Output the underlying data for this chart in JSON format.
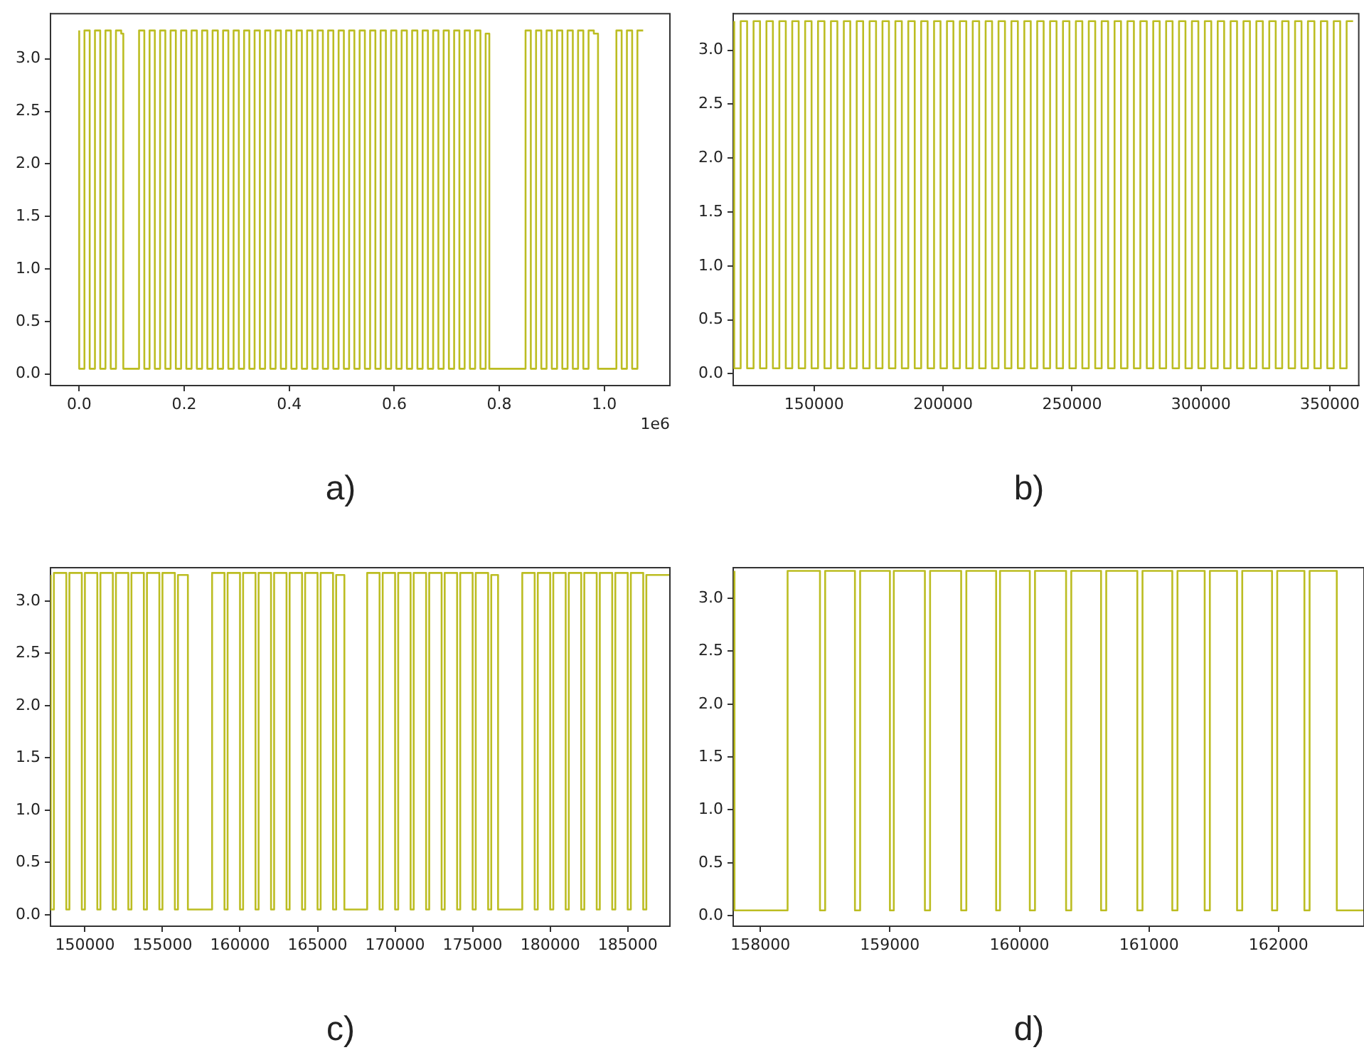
{
  "chart_data": [
    {
      "type": "step",
      "title": "a)",
      "color": "#bcbd22",
      "grid": false,
      "legend": false,
      "annotations": [
        "1e6"
      ],
      "xlim": [
        -0.0547,
        1.1249
      ],
      "xticks": [
        {
          "value": 0,
          "label": "0.0"
        },
        0.2,
        0.4,
        0.6,
        0.8,
        {
          "value": 1,
          "label": "1.0"
        }
      ],
      "ylim": [
        -0.11,
        3.43
      ],
      "yticks": [
        {
          "value": 0,
          "label": "0.0"
        },
        0.5,
        {
          "value": 1,
          "label": "1.0"
        },
        1.5,
        {
          "value": 2,
          "label": "2.0"
        },
        2.5,
        {
          "value": 3,
          "label": "3.0"
        }
      ],
      "x": [
        0,
        0.01,
        0.02,
        0.03,
        0.04,
        0.05,
        0.06,
        0.07,
        0.08,
        0.084,
        0.114,
        0.124,
        0.134,
        0.144,
        0.154,
        0.164,
        0.174,
        0.184,
        0.194,
        0.204,
        0.214,
        0.224,
        0.234,
        0.244,
        0.254,
        0.264,
        0.274,
        0.284,
        0.294,
        0.304,
        0.314,
        0.324,
        0.334,
        0.344,
        0.354,
        0.364,
        0.374,
        0.384,
        0.394,
        0.404,
        0.414,
        0.424,
        0.434,
        0.444,
        0.454,
        0.464,
        0.474,
        0.484,
        0.494,
        0.504,
        0.514,
        0.524,
        0.534,
        0.544,
        0.554,
        0.564,
        0.574,
        0.584,
        0.594,
        0.604,
        0.614,
        0.624,
        0.634,
        0.644,
        0.654,
        0.664,
        0.674,
        0.684,
        0.694,
        0.704,
        0.714,
        0.724,
        0.734,
        0.744,
        0.754,
        0.764,
        0.774,
        0.781,
        0.85,
        0.86,
        0.87,
        0.88,
        0.89,
        0.9,
        0.91,
        0.92,
        0.93,
        0.94,
        0.95,
        0.96,
        0.97,
        0.98,
        0.988,
        1.023,
        1.033,
        1.043,
        1.053,
        1.063,
        1.073,
        1.074
      ],
      "values": [
        3.27,
        0.05,
        3.27,
        0.05,
        3.27,
        0.05,
        3.27,
        0.05,
        3.27,
        3.24,
        0.05,
        3.27,
        0.05,
        3.27,
        0.05,
        3.27,
        0.05,
        3.27,
        0.05,
        3.27,
        0.05,
        3.27,
        0.05,
        3.27,
        0.05,
        3.27,
        0.05,
        3.27,
        0.05,
        3.27,
        0.05,
        3.27,
        0.05,
        3.27,
        0.05,
        3.27,
        0.05,
        3.27,
        0.05,
        3.27,
        0.05,
        3.27,
        0.05,
        3.27,
        0.05,
        3.27,
        0.05,
        3.27,
        0.05,
        3.27,
        0.05,
        3.27,
        0.05,
        3.27,
        0.05,
        3.27,
        0.05,
        3.27,
        0.05,
        3.27,
        0.05,
        3.27,
        0.05,
        3.27,
        0.05,
        3.27,
        0.05,
        3.27,
        0.05,
        3.27,
        0.05,
        3.27,
        0.05,
        3.27,
        0.05,
        3.27,
        0.05,
        3.24,
        0.05,
        3.27,
        0.05,
        3.27,
        0.05,
        3.27,
        0.05,
        3.27,
        0.05,
        3.27,
        0.05,
        3.27,
        0.05,
        3.27,
        3.24,
        0.05,
        3.27,
        0.05,
        3.27,
        0.05,
        3.27,
        3.27
      ]
    },
    {
      "type": "step",
      "title": "b)",
      "color": "#bcbd22",
      "grid": false,
      "legend": false,
      "xlim": [
        118600,
        361200
      ],
      "xticks": [
        150000,
        200000,
        250000,
        300000,
        350000
      ],
      "ylim": [
        -0.11,
        3.34
      ],
      "yticks": [
        {
          "value": 0,
          "label": "0.0"
        },
        0.5,
        {
          "value": 1,
          "label": "1.0"
        },
        1.5,
        {
          "value": 2,
          "label": "2.0"
        },
        2.5,
        {
          "value": 3,
          "label": "3.0"
        }
      ],
      "x": [
        119000,
        121500,
        124000,
        126500,
        129000,
        131500,
        134000,
        136500,
        139000,
        141500,
        144000,
        146500,
        149000,
        151500,
        154000,
        156500,
        159000,
        161500,
        164000,
        166500,
        169000,
        171500,
        174000,
        176500,
        179000,
        181500,
        184000,
        186500,
        189000,
        191500,
        194000,
        196500,
        199000,
        201500,
        204000,
        206500,
        209000,
        211500,
        214000,
        216500,
        219000,
        221500,
        224000,
        226500,
        229000,
        231500,
        234000,
        236500,
        239000,
        241500,
        244000,
        246500,
        249000,
        251500,
        254000,
        256500,
        259000,
        261500,
        264000,
        266500,
        269000,
        271500,
        274000,
        276500,
        279000,
        281500,
        284000,
        286500,
        289000,
        291500,
        294000,
        296500,
        299000,
        301500,
        304000,
        306500,
        309000,
        311500,
        314000,
        316500,
        319000,
        321500,
        324000,
        326500,
        329000,
        331500,
        334000,
        336500,
        339000,
        341500,
        344000,
        346500,
        349000,
        351500,
        354000,
        356500,
        359000
      ],
      "values": [
        3.27,
        0.05,
        3.27,
        0.05,
        3.27,
        0.05,
        3.27,
        0.05,
        3.27,
        0.05,
        3.27,
        0.05,
        3.27,
        0.05,
        3.27,
        0.05,
        3.27,
        0.05,
        3.27,
        0.05,
        3.27,
        0.05,
        3.27,
        0.05,
        3.27,
        0.05,
        3.27,
        0.05,
        3.27,
        0.05,
        3.27,
        0.05,
        3.27,
        0.05,
        3.27,
        0.05,
        3.27,
        0.05,
        3.27,
        0.05,
        3.27,
        0.05,
        3.27,
        0.05,
        3.27,
        0.05,
        3.27,
        0.05,
        3.27,
        0.05,
        3.27,
        0.05,
        3.27,
        0.05,
        3.27,
        0.05,
        3.27,
        0.05,
        3.27,
        0.05,
        3.27,
        0.05,
        3.27,
        0.05,
        3.27,
        0.05,
        3.27,
        0.05,
        3.27,
        0.05,
        3.27,
        0.05,
        3.27,
        0.05,
        3.27,
        0.05,
        3.27,
        0.05,
        3.27,
        0.05,
        3.27,
        0.05,
        3.27,
        0.05,
        3.27,
        0.05,
        3.27,
        0.05,
        3.27,
        0.05,
        3.27,
        0.05,
        3.27,
        0.05,
        3.27,
        0.05,
        3.27
      ]
    },
    {
      "type": "step",
      "title": "c)",
      "color": "#bcbd22",
      "grid": false,
      "legend": false,
      "xlim": [
        147780,
        187720
      ],
      "xticks": [
        150000,
        155000,
        160000,
        165000,
        170000,
        175000,
        180000,
        185000
      ],
      "ylim": [
        -0.11,
        3.32
      ],
      "yticks": [
        {
          "value": 0,
          "label": "0.0"
        },
        0.5,
        {
          "value": 1,
          "label": "1.0"
        },
        1.5,
        {
          "value": 2,
          "label": "2.0"
        },
        2.5,
        {
          "value": 3,
          "label": "3.0"
        }
      ],
      "x": [
        147800,
        148000,
        148800,
        149000,
        149800,
        150000,
        150800,
        151000,
        151800,
        152000,
        152800,
        153000,
        153800,
        154000,
        154800,
        155000,
        155800,
        156000,
        156640,
        158200,
        159000,
        159200,
        160000,
        160200,
        161000,
        161200,
        162000,
        162200,
        163000,
        163200,
        164000,
        164200,
        165000,
        165200,
        166000,
        166200,
        166730,
        168200,
        169000,
        169200,
        170000,
        170200,
        171000,
        171200,
        172000,
        172200,
        173000,
        173200,
        174000,
        174200,
        175000,
        175200,
        176000,
        176200,
        176640,
        178200,
        179000,
        179200,
        180000,
        180200,
        181000,
        181200,
        182000,
        182200,
        183000,
        183200,
        184000,
        184200,
        185000,
        185200,
        186000,
        186200,
        186730,
        187700
      ],
      "values": [
        3.25,
        0.05,
        3.27,
        0.05,
        3.27,
        0.05,
        3.27,
        0.05,
        3.27,
        0.05,
        3.27,
        0.05,
        3.27,
        0.05,
        3.27,
        0.05,
        3.27,
        0.05,
        3.25,
        0.05,
        3.27,
        0.05,
        3.27,
        0.05,
        3.27,
        0.05,
        3.27,
        0.05,
        3.27,
        0.05,
        3.27,
        0.05,
        3.27,
        0.05,
        3.27,
        0.05,
        3.25,
        0.05,
        3.27,
        0.05,
        3.27,
        0.05,
        3.27,
        0.05,
        3.27,
        0.05,
        3.27,
        0.05,
        3.27,
        0.05,
        3.27,
        0.05,
        3.27,
        0.05,
        3.25,
        0.05,
        3.27,
        0.05,
        3.27,
        0.05,
        3.27,
        0.05,
        3.27,
        0.05,
        3.27,
        0.05,
        3.27,
        0.05,
        3.27,
        0.05,
        3.27,
        0.05,
        3.25,
        3.25
      ]
    },
    {
      "type": "step",
      "title": "d)",
      "color": "#bcbd22",
      "grid": false,
      "legend": false,
      "xlim": [
        157790,
        162660
      ],
      "xticks": [
        158000,
        159000,
        160000,
        161000,
        162000
      ],
      "ylim": [
        -0.1,
        3.29
      ],
      "yticks": [
        {
          "value": 0,
          "label": "0.0"
        },
        0.5,
        {
          "value": 1,
          "label": "1.0"
        },
        1.5,
        {
          "value": 2,
          "label": "2.0"
        },
        2.5,
        {
          "value": 3,
          "label": "3.0"
        }
      ],
      "x": [
        157800,
        158210,
        158460,
        158500,
        158730,
        158770,
        159000,
        159030,
        159270,
        159310,
        159550,
        159590,
        159820,
        159850,
        160080,
        160120,
        160360,
        160400,
        160630,
        160670,
        160910,
        160950,
        161180,
        161220,
        161430,
        161470,
        161680,
        161720,
        161950,
        161990,
        162200,
        162240,
        162450,
        162490,
        162660
      ],
      "values": [
        3.26,
        0.05,
        3.26,
        0.05,
        3.26,
        0.05,
        3.26,
        0.05,
        3.26,
        0.05,
        3.26,
        0.05,
        3.26,
        0.05,
        3.26,
        0.05,
        3.26,
        0.05,
        3.26,
        0.05,
        3.26,
        0.05,
        3.26,
        0.05,
        3.26,
        0.05,
        3.26,
        0.05,
        3.26,
        0.05,
        3.26,
        0.05,
        3.26,
        0.05,
        0.05
      ]
    }
  ]
}
